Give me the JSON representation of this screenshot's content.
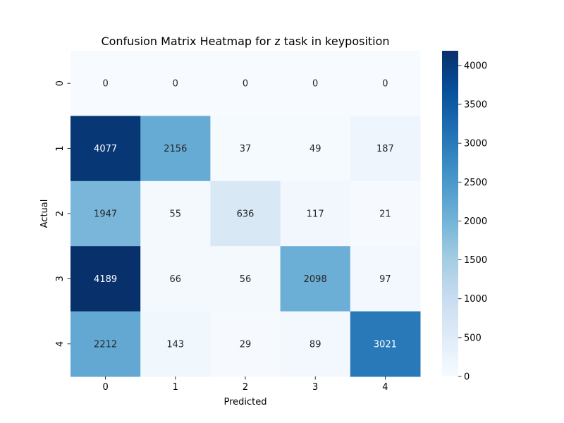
{
  "chart_data": {
    "type": "heatmap",
    "title": "Confusion Matrix Heatmap for z task in keyposition",
    "xlabel": "Predicted",
    "ylabel": "Actual",
    "x_categories": [
      "0",
      "1",
      "2",
      "3",
      "4"
    ],
    "y_categories": [
      "0",
      "1",
      "2",
      "3",
      "4"
    ],
    "values": [
      [
        0,
        0,
        0,
        0,
        0
      ],
      [
        4077,
        2156,
        37,
        49,
        187
      ],
      [
        1947,
        55,
        636,
        117,
        21
      ],
      [
        4189,
        66,
        56,
        2098,
        97
      ],
      [
        2212,
        143,
        29,
        89,
        3021
      ]
    ],
    "colormap": "Blues",
    "color_range": [
      0,
      4189
    ],
    "colorbar_ticks": [
      0,
      500,
      1000,
      1500,
      2000,
      2500,
      3000,
      3500,
      4000
    ],
    "colors": {
      "low": "#f7fbff",
      "high": "#08306b"
    },
    "annotations": true,
    "grid": false
  }
}
